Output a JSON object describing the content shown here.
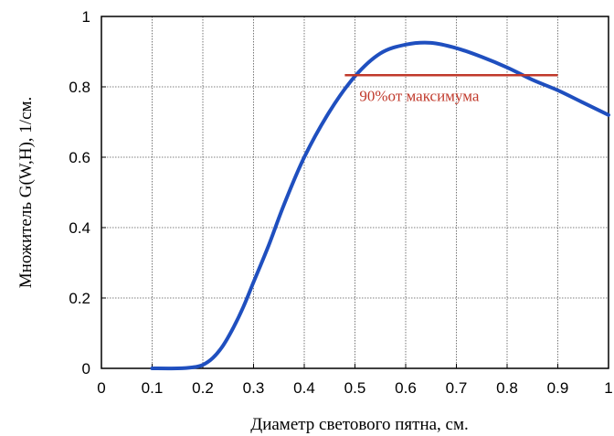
{
  "chart_data": {
    "type": "line",
    "title": "",
    "xlabel": "Диаметр светового пятна, см.",
    "ylabel": "Множитель G(W,H), 1/см.",
    "xlim": [
      0,
      1
    ],
    "ylim": [
      0,
      1
    ],
    "grid": true,
    "xticks": [
      "0",
      "0.1",
      "0.2",
      "0.3",
      "0.4",
      "0.5",
      "0.6",
      "0.7",
      "0.8",
      "0.9",
      "1"
    ],
    "yticks": [
      "0",
      "0.2",
      "0.4",
      "0.6",
      "0.8",
      "1"
    ],
    "series": [
      {
        "color": "#1f4fbf",
        "x": [
          0.1,
          0.15,
          0.18,
          0.2,
          0.22,
          0.24,
          0.26,
          0.28,
          0.3,
          0.33,
          0.36,
          0.4,
          0.45,
          0.5,
          0.55,
          0.6,
          0.65,
          0.7,
          0.75,
          0.8,
          0.85,
          0.9,
          0.95,
          1.0
        ],
        "y": [
          0.0,
          0.0,
          0.003,
          0.01,
          0.03,
          0.065,
          0.115,
          0.175,
          0.245,
          0.35,
          0.465,
          0.6,
          0.73,
          0.83,
          0.895,
          0.92,
          0.925,
          0.91,
          0.885,
          0.855,
          0.82,
          0.79,
          0.755,
          0.72
        ]
      }
    ],
    "annotation": {
      "text": "90%от максимума",
      "color": "#c0392b",
      "y": 0.833,
      "x_start": 0.48,
      "x_end": 0.9
    }
  }
}
